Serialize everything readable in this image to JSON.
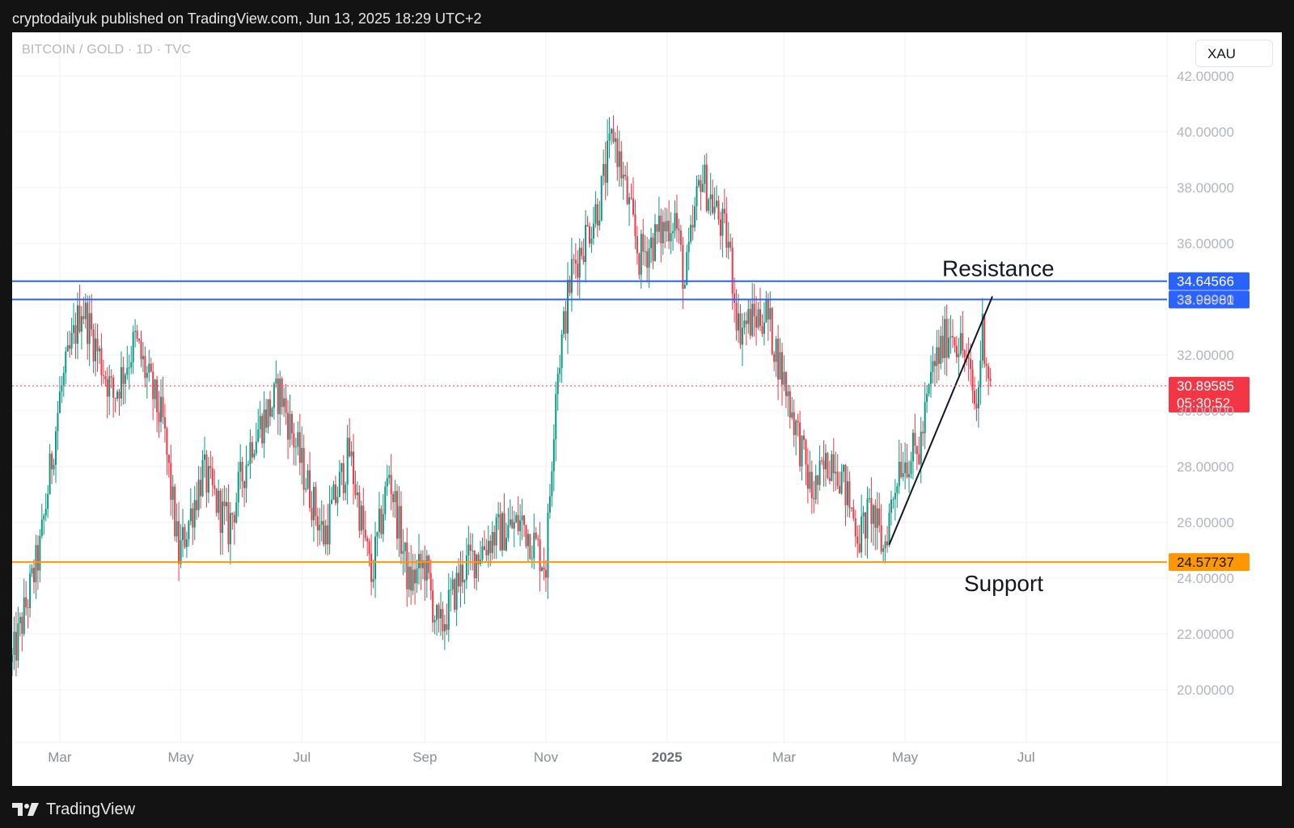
{
  "header": {
    "published_line": "cryptodailyuk published on TradingView.com, Jun 13, 2025 18:29 UTC+2"
  },
  "chart": {
    "symbol_label": "BITCOIN / GOLD · 1D · TVC",
    "currency_button": "XAU"
  },
  "footer": {
    "brand": "TradingView"
  },
  "colors": {
    "up": "#089981",
    "down": "#f23645",
    "resistance": "#2962ff",
    "support": "#ff9800",
    "grid": "#f0f1f4",
    "axis_text": "#b2b5be"
  },
  "chart_data": {
    "type": "candlestick",
    "title": "",
    "xlabel": "",
    "ylabel": "",
    "ylim": [
      17.5,
      43.5
    ],
    "y_ticks": [
      "42.00000",
      "40.00000",
      "38.00000",
      "36.00000",
      "34.00000",
      "32.00000",
      "30.00000",
      "28.00000",
      "26.00000",
      "24.00000",
      "22.00000",
      "20.00000"
    ],
    "y_tick_values": [
      42,
      40,
      38,
      36,
      34,
      32,
      30,
      28,
      26,
      24,
      22,
      20
    ],
    "x_ticks": [
      "Mar",
      "May",
      "Jul",
      "Sep",
      "Nov",
      "2025",
      "Mar",
      "May",
      "Jul"
    ],
    "x_tick_dates": [
      "2024-03-01",
      "2024-05-01",
      "2024-07-01",
      "2024-09-01",
      "2024-11-01",
      "2025-01-01",
      "2025-03-01",
      "2025-05-01",
      "2025-07-01"
    ],
    "x_range": [
      "2024-02-06",
      "2025-09-10"
    ],
    "price_path": [
      [
        "2024-02-06",
        21.0
      ],
      [
        "2024-02-20",
        25.0
      ],
      [
        "2024-03-01",
        30.5
      ],
      [
        "2024-03-12",
        33.8
      ],
      [
        "2024-03-28",
        30.5
      ],
      [
        "2024-04-08",
        32.5
      ],
      [
        "2024-04-22",
        29.5
      ],
      [
        "2024-04-30",
        24.8
      ],
      [
        "2024-05-12",
        27.8
      ],
      [
        "2024-05-25",
        25.8
      ],
      [
        "2024-06-06",
        29.0
      ],
      [
        "2024-06-20",
        30.7
      ],
      [
        "2024-07-01",
        28.0
      ],
      [
        "2024-07-12",
        25.5
      ],
      [
        "2024-07-25",
        28.5
      ],
      [
        "2024-08-05",
        24.0
      ],
      [
        "2024-08-14",
        27.8
      ],
      [
        "2024-08-24",
        23.8
      ],
      [
        "2024-09-01",
        24.5
      ],
      [
        "2024-09-08",
        22.0
      ],
      [
        "2024-09-20",
        24.3
      ],
      [
        "2024-10-05",
        25.5
      ],
      [
        "2024-10-20",
        26.0
      ],
      [
        "2024-11-01",
        24.5
      ],
      [
        "2024-11-06",
        31.0
      ],
      [
        "2024-11-14",
        35.0
      ],
      [
        "2024-11-28",
        37.5
      ],
      [
        "2024-12-05",
        40.0
      ],
      [
        "2024-12-18",
        35.5
      ],
      [
        "2025-01-05",
        37.0
      ],
      [
        "2025-01-10",
        34.5
      ],
      [
        "2025-01-18",
        38.5
      ],
      [
        "2025-02-01",
        36.0
      ],
      [
        "2025-02-06",
        33.0
      ],
      [
        "2025-02-20",
        33.5
      ],
      [
        "2025-03-05",
        30.0
      ],
      [
        "2025-03-15",
        27.0
      ],
      [
        "2025-03-26",
        28.5
      ],
      [
        "2025-04-08",
        25.5
      ],
      [
        "2025-04-14",
        26.5
      ],
      [
        "2025-04-20",
        25.0
      ],
      [
        "2025-04-28",
        28.2
      ],
      [
        "2025-05-08",
        28.5
      ],
      [
        "2025-05-15",
        31.5
      ],
      [
        "2025-05-24",
        33.0
      ],
      [
        "2025-05-31",
        32.0
      ],
      [
        "2025-06-06",
        30.0
      ],
      [
        "2025-06-09",
        33.0
      ],
      [
        "2025-06-13",
        30.9
      ]
    ],
    "lines": [
      {
        "label": "Resistance",
        "value": 34.64566,
        "value_label": "34.64566",
        "color": "#2962ff"
      },
      {
        "label": "",
        "value": 33.98981,
        "value_label": "33.98981",
        "color": "#2962ff"
      },
      {
        "label": "Support",
        "value": 24.57737,
        "value_label": "24.57737",
        "color": "#ff9800"
      }
    ],
    "trendline": [
      [
        "2025-04-23",
        25.2
      ],
      [
        "2025-06-14",
        34.1
      ]
    ],
    "last_price": 30.89585,
    "last_price_label": "30.89585",
    "countdown": "05:30:52",
    "annotations": [
      "Resistance",
      "Support"
    ]
  }
}
